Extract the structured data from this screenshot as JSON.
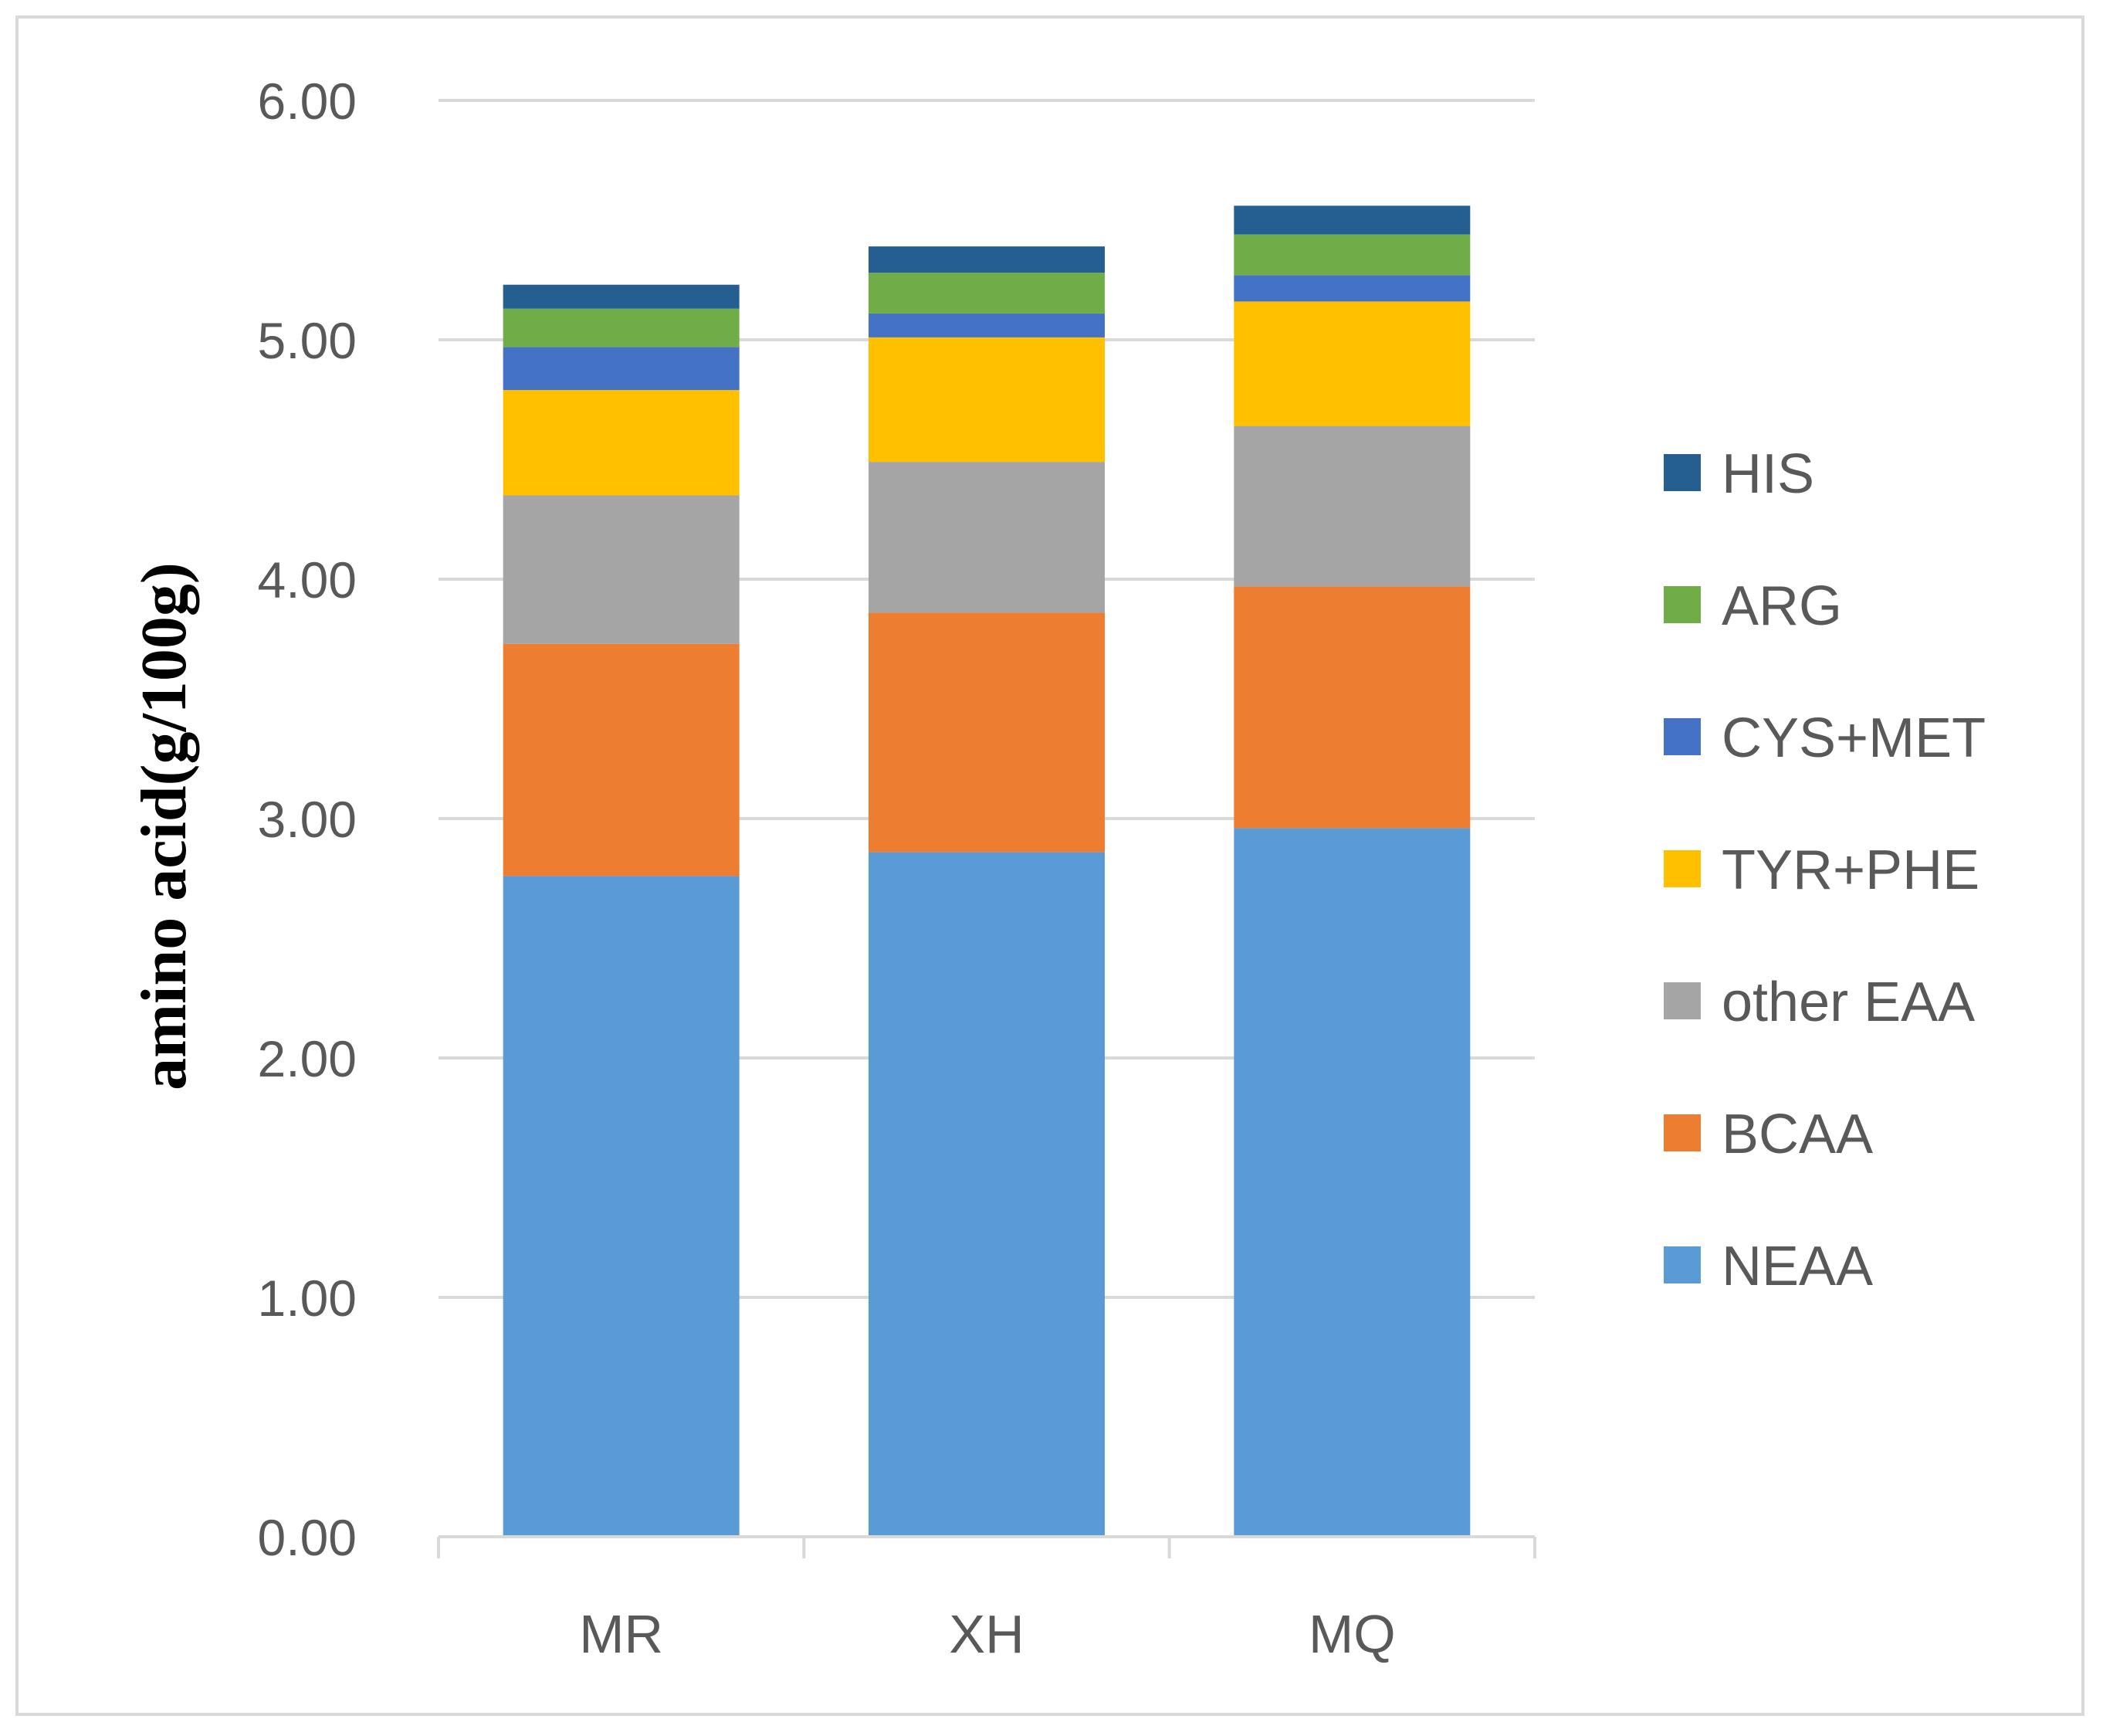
{
  "chart_data": {
    "type": "bar",
    "stacked": true,
    "title": "",
    "xlabel": "",
    "ylabel": "amino acid(g/100g)",
    "ylim": [
      0,
      6
    ],
    "yticks": [
      "0.00",
      "1.00",
      "2.00",
      "3.00",
      "4.00",
      "5.00",
      "6.00"
    ],
    "grid": true,
    "legend_position": "right",
    "categories": [
      "MR",
      "XH",
      "MQ"
    ],
    "series": [
      {
        "name": "NEAA",
        "color": "#5b9bd5",
        "values": [
          2.76,
          2.86,
          2.96
        ]
      },
      {
        "name": "BCAA",
        "color": "#ed7d31",
        "values": [
          0.97,
          1.0,
          1.01
        ]
      },
      {
        "name": "other EAA",
        "color": "#a5a5a5",
        "values": [
          0.62,
          0.63,
          0.67
        ]
      },
      {
        "name": "TYR+PHE",
        "color": "#ffc000",
        "values": [
          0.44,
          0.52,
          0.52
        ]
      },
      {
        "name": "CYS+MET",
        "color": "#4472c4",
        "values": [
          0.18,
          0.1,
          0.11
        ]
      },
      {
        "name": "ARG",
        "color": "#70ad47",
        "values": [
          0.16,
          0.17,
          0.17
        ]
      },
      {
        "name": "HIS",
        "color": "#255e91",
        "values": [
          0.1,
          0.11,
          0.12
        ]
      }
    ]
  }
}
